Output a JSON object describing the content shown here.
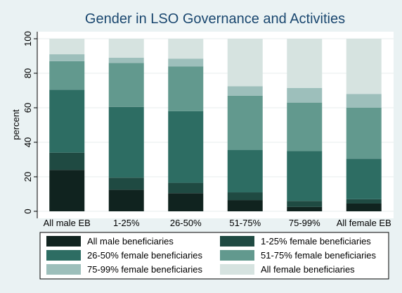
{
  "chart_data": {
    "type": "bar",
    "stacked": true,
    "title": "Gender in LSO Governance and Activities",
    "ylabel": "percent",
    "ylim": [
      0,
      100
    ],
    "yticks": [
      0,
      20,
      40,
      60,
      80,
      100
    ],
    "grid": true,
    "legend_position": "bottom",
    "categories": [
      "All male EB",
      "1-25%",
      "26-50%",
      "51-75%",
      "75-99%",
      "All female EB"
    ],
    "series": [
      {
        "name": "All male beneficiaries",
        "color": "#10231f",
        "values": [
          24,
          12.5,
          10.5,
          6.5,
          2.5,
          4.5
        ]
      },
      {
        "name": "1-25% female beneficiaries",
        "color": "#1f4a42",
        "values": [
          10,
          7,
          6,
          4.5,
          3.5,
          2.5
        ]
      },
      {
        "name": "26-50% female beneficiaries",
        "color": "#2d6d63",
        "values": [
          36.5,
          41,
          41.5,
          24.5,
          29,
          23.5
        ]
      },
      {
        "name": "51-75% female beneficiaries",
        "color": "#62998e",
        "values": [
          16.5,
          25.5,
          26,
          31.5,
          28,
          29.5
        ]
      },
      {
        "name": "75-99% female beneficiaries",
        "color": "#9dbfbb",
        "values": [
          4,
          3,
          4.5,
          5.5,
          8.5,
          8
        ]
      },
      {
        "name": "All female beneficiaries",
        "color": "#d6e3e0",
        "values": [
          9,
          11,
          11.5,
          27.5,
          28.5,
          32
        ]
      }
    ]
  }
}
